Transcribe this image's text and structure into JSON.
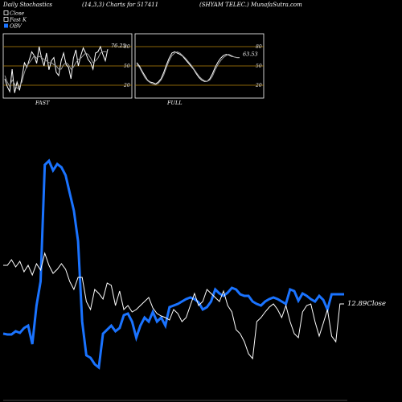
{
  "header": {
    "left": "Daily Stochastics",
    "mid": "(14,3,3) Charts for 517411",
    "right": "(SHYAM TELEC.) MunafaSutra.com"
  },
  "legend": [
    {
      "label": "Slow D",
      "swatch": "box"
    },
    {
      "label": "Fast K",
      "swatch": "box"
    },
    {
      "label": "OBV",
      "swatch": "blue",
      "color": "#1a73ff"
    }
  ],
  "colors": {
    "obv": "#1a73ff",
    "price": "#ffffff",
    "level_line": "#b8860b",
    "panel_bg": "#000000"
  },
  "chart_data": [
    {
      "type": "line",
      "title": "FAST",
      "last_value": "76.25",
      "yticks": [
        20,
        50,
        80
      ],
      "ylim": [
        0,
        100
      ],
      "series": [
        {
          "name": "Fast K",
          "values": [
            30,
            18,
            10,
            45,
            8,
            25,
            12,
            32,
            55,
            48,
            60,
            72,
            66,
            54,
            80,
            62,
            50,
            70,
            44,
            58,
            63,
            40,
            35,
            58,
            70,
            52,
            48,
            30,
            62,
            75,
            50,
            66,
            78,
            70,
            60,
            55,
            45,
            70,
            72,
            80,
            68,
            58,
            76
          ]
        },
        {
          "name": "Slow D",
          "values": [
            35,
            25,
            18,
            28,
            22,
            15,
            18,
            25,
            40,
            50,
            55,
            60,
            66,
            62,
            65,
            63,
            60,
            58,
            55,
            55,
            52,
            50,
            45,
            45,
            52,
            55,
            52,
            45,
            48,
            55,
            60,
            62,
            66,
            70,
            68,
            62,
            55,
            58,
            62,
            70,
            72,
            72,
            72
          ]
        }
      ]
    },
    {
      "type": "line",
      "title": "FULL",
      "last_value": "63.53",
      "yticks": [
        20,
        50,
        80
      ],
      "ylim": [
        0,
        100
      ],
      "series": [
        {
          "name": "Line A",
          "values": [
            55,
            50,
            42,
            35,
            28,
            25,
            24,
            22,
            25,
            30,
            40,
            52,
            62,
            70,
            72,
            70,
            68,
            65,
            60,
            55,
            50,
            45,
            38,
            32,
            28,
            26,
            26,
            30,
            38,
            48,
            56,
            62,
            66,
            68,
            67,
            65,
            64,
            63,
            63
          ]
        },
        {
          "name": "Line B",
          "values": [
            52,
            48,
            40,
            32,
            27,
            24,
            22,
            21,
            23,
            28,
            36,
            48,
            58,
            66,
            70,
            72,
            70,
            66,
            62,
            57,
            52,
            46,
            40,
            34,
            30,
            27,
            26,
            28,
            34,
            44,
            52,
            58,
            63,
            66,
            68,
            66,
            64,
            63,
            63
          ]
        }
      ]
    },
    {
      "type": "line",
      "title": "",
      "price_label": "12.89Close",
      "series": [
        {
          "name": "OBV",
          "values": [
            415,
            416,
            416,
            412,
            414,
            408,
            405,
            428,
            380,
            350,
            205,
            200,
            212,
            204,
            208,
            218,
            240,
            262,
            300,
            400,
            442,
            445,
            453,
            457,
            415,
            410,
            405,
            412,
            408,
            392,
            390,
            400,
            420,
            405,
            395,
            400,
            388,
            400,
            395,
            405,
            382,
            380,
            378,
            375,
            372,
            370,
            372,
            376,
            385,
            382,
            375,
            360,
            365,
            368,
            364,
            358,
            360,
            366,
            368,
            368,
            375,
            378,
            380,
            375,
            372,
            370,
            372,
            375,
            378,
            360,
            362,
            374,
            365,
            368,
            372,
            375,
            368,
            373,
            385,
            366,
            366,
            366,
            366
          ]
        },
        {
          "name": "Close",
          "values": [
            330,
            330,
            323,
            332,
            325,
            338,
            330,
            342,
            328,
            336,
            315,
            330,
            340,
            335,
            328,
            335,
            350,
            360,
            345,
            345,
            375,
            385,
            360,
            365,
            372,
            352,
            355,
            380,
            362,
            385,
            380,
            388,
            385,
            380,
            375,
            370,
            383,
            390,
            393,
            395,
            398,
            385,
            390,
            400,
            395,
            380,
            365,
            380,
            375,
            360,
            365,
            370,
            375,
            362,
            380,
            388,
            410,
            415,
            425,
            440,
            446,
            400,
            395,
            388,
            382,
            378,
            385,
            395,
            380,
            400,
            415,
            420,
            388,
            380,
            378,
            400,
            418,
            402,
            385,
            418,
            425,
            378,
            378
          ]
        }
      ]
    }
  ]
}
